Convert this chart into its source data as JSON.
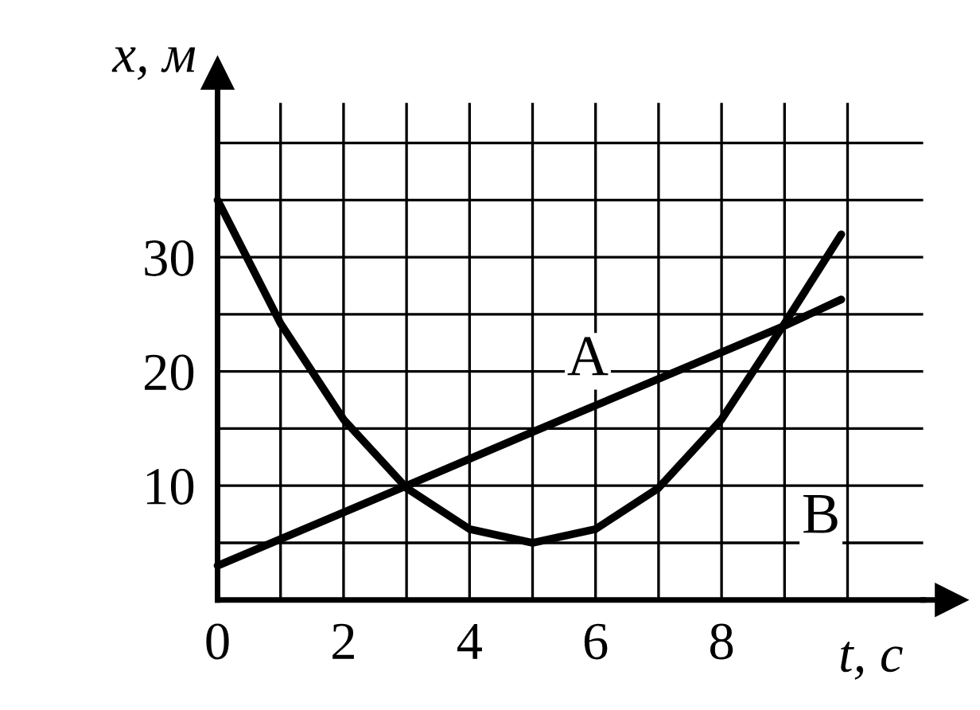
{
  "chart_data": {
    "type": "line",
    "xlabel": "t, с",
    "ylabel": "x, м",
    "xlim": [
      0,
      11.2
    ],
    "ylim": [
      0,
      43.5
    ],
    "xticks": [
      0,
      {
        "value": 1,
        "label": null
      },
      2,
      {
        "value": 3,
        "label": null
      },
      4,
      {
        "value": 5,
        "label": null
      },
      6,
      {
        "value": 7,
        "label": null
      },
      8,
      {
        "value": 9,
        "label": null
      },
      {
        "value": 10,
        "label": null
      }
    ],
    "yticks": [
      {
        "value": 0,
        "label": null
      },
      {
        "value": 5,
        "label": null
      },
      10,
      {
        "value": 15,
        "label": null
      },
      20,
      {
        "value": 25,
        "label": null
      },
      30,
      {
        "value": 35,
        "label": null
      },
      {
        "value": 40,
        "label": null
      }
    ],
    "grid": true,
    "legend": false,
    "marker": "none",
    "line_style": "solid",
    "series": [
      {
        "name": "A",
        "color": "#000000",
        "x": [
          0,
          3,
          5,
          9,
          9.9
        ],
        "values": [
          3,
          10,
          14.7,
          24,
          26.3
        ]
      },
      {
        "name": "B",
        "color": "#000000",
        "x": [
          0,
          1,
          2,
          3,
          4,
          5,
          6,
          7,
          8,
          9,
          9.9
        ],
        "values": [
          35,
          24.2,
          15.8,
          9.8,
          6.2,
          5,
          6.2,
          9.8,
          15.8,
          24.2,
          32
        ]
      }
    ]
  }
}
